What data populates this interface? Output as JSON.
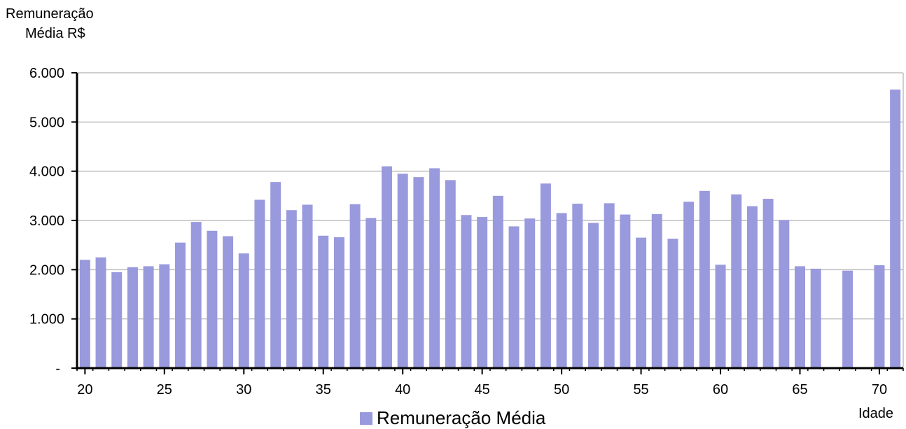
{
  "chart_data": {
    "type": "bar",
    "title": "",
    "ylabel_line1": "Remuneração",
    "ylabel_line2": "Média R$",
    "xlabel": "Idade",
    "ylim": [
      0,
      6000
    ],
    "yticks": [
      0,
      1000,
      2000,
      3000,
      4000,
      5000,
      6000
    ],
    "ytick_labels": [
      "-",
      "1.000",
      "2.000",
      "3.000",
      "4.000",
      "5.000",
      "6.000"
    ],
    "x_range": [
      20,
      71
    ],
    "xticks": [
      20,
      25,
      30,
      35,
      40,
      45,
      50,
      55,
      60,
      65,
      70
    ],
    "xtick_labels": [
      "20",
      "25",
      "30",
      "35",
      "40",
      "45",
      "50",
      "55",
      "60",
      "65",
      "70"
    ],
    "grid": true,
    "legend_position": "bottom",
    "bar_color": "#9999dd",
    "series": [
      {
        "name": "Remuneração Média",
        "x": [
          20,
          21,
          22,
          23,
          24,
          25,
          26,
          27,
          28,
          29,
          30,
          31,
          32,
          33,
          34,
          35,
          36,
          37,
          38,
          39,
          40,
          41,
          42,
          43,
          44,
          45,
          46,
          47,
          48,
          49,
          50,
          51,
          52,
          53,
          54,
          55,
          56,
          57,
          58,
          59,
          60,
          61,
          62,
          63,
          64,
          65,
          66,
          67,
          68,
          69,
          70,
          71
        ],
        "values": [
          2200,
          2250,
          1950,
          2050,
          2070,
          2110,
          2550,
          2970,
          2790,
          2680,
          2330,
          3420,
          3780,
          3210,
          3320,
          2690,
          2660,
          3330,
          3050,
          4100,
          3950,
          3880,
          4060,
          3820,
          3110,
          3070,
          3500,
          2880,
          3040,
          3750,
          3150,
          3340,
          2950,
          3350,
          3120,
          2650,
          3130,
          2630,
          3380,
          3600,
          2100,
          3530,
          3290,
          3440,
          3010,
          2070,
          2020,
          0,
          1980,
          0,
          2090,
          5660
        ]
      }
    ]
  }
}
